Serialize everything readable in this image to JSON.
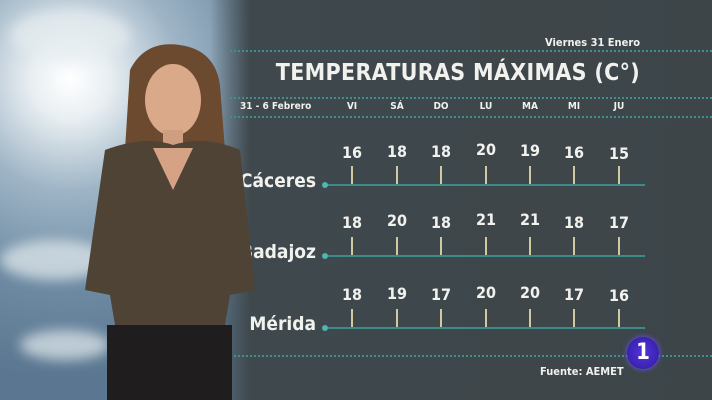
{
  "header": {
    "date": "Viernes 31 Enero",
    "title": "TEMPERATURAS MÁXIMAS (C°)",
    "range": "31 - 6 Febrero"
  },
  "days": [
    "VI",
    "SÁ",
    "DO",
    "LU",
    "MA",
    "MI",
    "JU"
  ],
  "cities": [
    {
      "name": "Cáceres",
      "values": [
        16,
        18,
        18,
        20,
        19,
        16,
        15
      ]
    },
    {
      "name": "Badajoz",
      "values": [
        18,
        20,
        18,
        21,
        21,
        18,
        17
      ]
    },
    {
      "name": "Mérida",
      "values": [
        18,
        19,
        17,
        20,
        20,
        17,
        16
      ]
    }
  ],
  "footer": {
    "source": "Fuente: AEMET",
    "logo": "1"
  },
  "colors": {
    "panel": "#3d4549",
    "accent": "#3b8c89",
    "logo": "#3a22b0"
  }
}
